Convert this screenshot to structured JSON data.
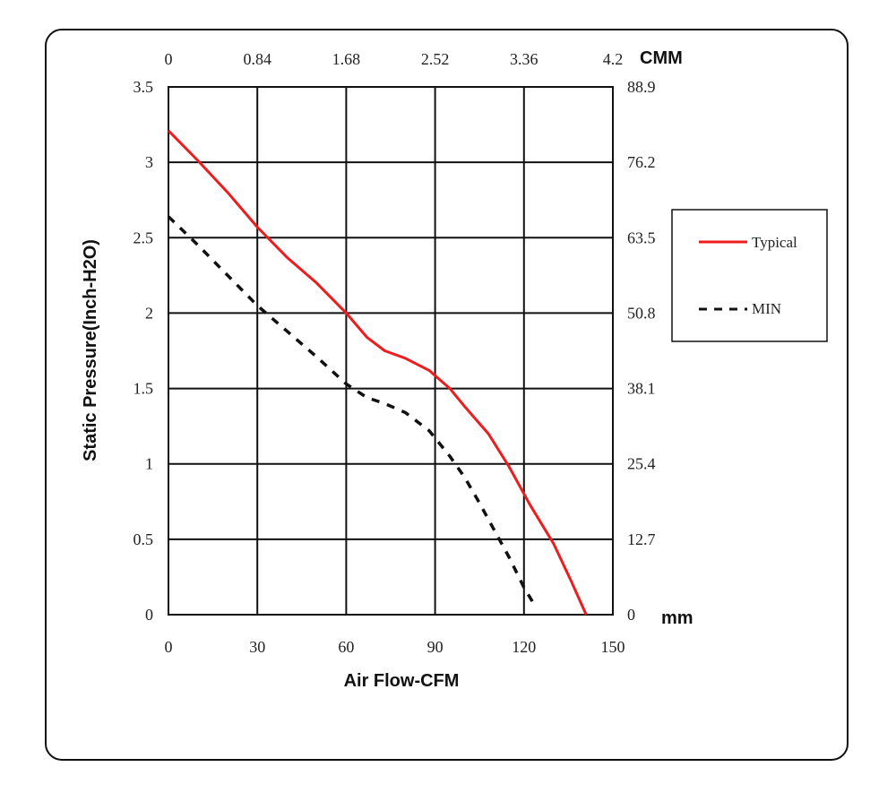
{
  "chart_data": {
    "type": "line",
    "xlabel": "Air Flow-CFM",
    "ylabel": "Static Pressure(Inch-H2O)",
    "x_unit_top": "CMM",
    "y_unit_right": "mm",
    "xlim": [
      0,
      150
    ],
    "ylim": [
      0,
      3.5
    ],
    "grid": true,
    "legend_position": "right",
    "x_ticks": [
      "0",
      "30",
      "60",
      "90",
      "120",
      "150"
    ],
    "y_ticks": [
      "0",
      "0.5",
      "1",
      "1.5",
      "2",
      "2.5",
      "3",
      "3.5"
    ],
    "x_ticks_top": [
      "0",
      "0.84",
      "1.68",
      "2.52",
      "3.36",
      "4.2"
    ],
    "y_ticks_right": [
      "0",
      "12.7",
      "25.4",
      "38.1",
      "50.8",
      "63.5",
      "76.2",
      "88.9"
    ],
    "series": [
      {
        "name": "Typical",
        "color": "#ee1c1c",
        "style": "solid",
        "x": [
          0,
          10,
          20,
          30,
          40,
          50,
          60,
          67,
          73,
          80,
          88,
          95,
          100,
          108,
          115,
          122,
          130,
          136,
          141
        ],
        "y": [
          3.21,
          3.01,
          2.8,
          2.57,
          2.37,
          2.2,
          2.0,
          1.84,
          1.75,
          1.7,
          1.62,
          1.5,
          1.38,
          1.2,
          0.98,
          0.73,
          0.47,
          0.22,
          0.0
        ]
      },
      {
        "name": "MIN",
        "color": "#111111",
        "style": "dashed",
        "x": [
          0,
          10,
          20,
          30,
          40,
          50,
          60,
          67,
          73,
          80,
          88,
          95,
          100,
          105,
          110,
          115,
          120,
          124
        ],
        "y": [
          2.64,
          2.45,
          2.25,
          2.05,
          1.88,
          1.71,
          1.53,
          1.44,
          1.4,
          1.34,
          1.22,
          1.05,
          0.91,
          0.74,
          0.56,
          0.38,
          0.18,
          0.05
        ]
      }
    ]
  }
}
